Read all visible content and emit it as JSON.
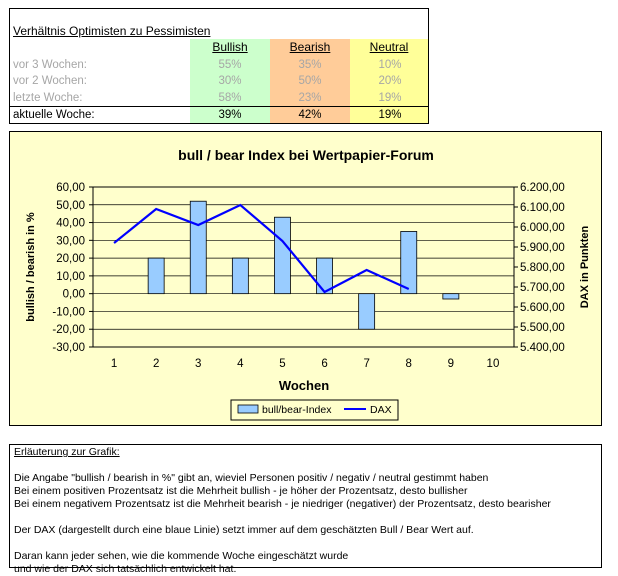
{
  "table": {
    "title": "Verhältnis Optimisten zu Pessimisten",
    "headers": {
      "bullish": "Bullish",
      "bearish": "Bearish",
      "neutral": "Neutral"
    },
    "rows": [
      {
        "label": "vor 3 Wochen:",
        "bullish": "55%",
        "bearish": "35%",
        "neutral": "10%"
      },
      {
        "label": "vor 2 Wochen:",
        "bullish": "30%",
        "bearish": "50%",
        "neutral": "20%"
      },
      {
        "label": "letzte Woche:",
        "bullish": "58%",
        "bearish": "23%",
        "neutral": "19%"
      },
      {
        "label": "aktuelle Woche:",
        "bullish": "39%",
        "bearish": "42%",
        "neutral": "19%"
      }
    ]
  },
  "chart_data": {
    "type": "bar",
    "title": "bull / bear Index bei Wertpapier-Forum",
    "xlabel": "Wochen",
    "ylabel_left": "bullish / bearish in %",
    "ylabel_right": "DAX in Punkten",
    "categories": [
      "1",
      "2",
      "3",
      "4",
      "5",
      "6",
      "7",
      "8",
      "9",
      "10"
    ],
    "yticks_left": [
      "60,00",
      "50,00",
      "40,00",
      "30,00",
      "20,00",
      "10,00",
      "0,00",
      "-10,00",
      "-20,00",
      "-30,00"
    ],
    "yticks_right": [
      "6.200,00",
      "6.100,00",
      "6.000,00",
      "5.900,00",
      "5.800,00",
      "5.700,00",
      "5.600,00",
      "5.500,00",
      "5.400,00"
    ],
    "ylim_left": [
      -30,
      60
    ],
    "ylim_right": [
      5400,
      6200
    ],
    "series": [
      {
        "name": "bull/bear-Index",
        "kind": "bar",
        "values": [
          null,
          20,
          52,
          20,
          43,
          20,
          -20,
          35,
          -3,
          null
        ]
      },
      {
        "name": "DAX",
        "kind": "line",
        "values": [
          5920,
          6090,
          6010,
          6110,
          5930,
          5675,
          5785,
          5690,
          null,
          null
        ]
      }
    ],
    "legend": "bottom-center",
    "grid": true,
    "colors": {
      "bar": "#99ccff",
      "line": "#0000ff",
      "plot_bg": "#ffffcc",
      "grid": "#000000"
    }
  },
  "explanation": {
    "heading": "Erläuterung zur Grafik:",
    "line1": "Die Angabe \"bullish / bearish in %\" gibt an, wieviel Personen positiv / negativ / neutral gestimmt haben",
    "line2": "Bei einem positiven Prozentsatz ist die Mehrheit bullish - je höher der Prozentsatz, desto bullisher",
    "line3": "Bei einem negativem Prozentsatz ist die Mehrheit bearish - je niedriger (negativer) der Prozentsatz, desto bearisher",
    "line4": "Der DAX (dargestellt durch eine blaue Linie) setzt immer auf dem geschätzten Bull / Bear Wert auf.",
    "line5": "Daran kann jeder sehen, wie die kommende Woche eingeschätzt wurde",
    "line6": "und wie der DAX sich tatsächlich entwickelt hat."
  }
}
